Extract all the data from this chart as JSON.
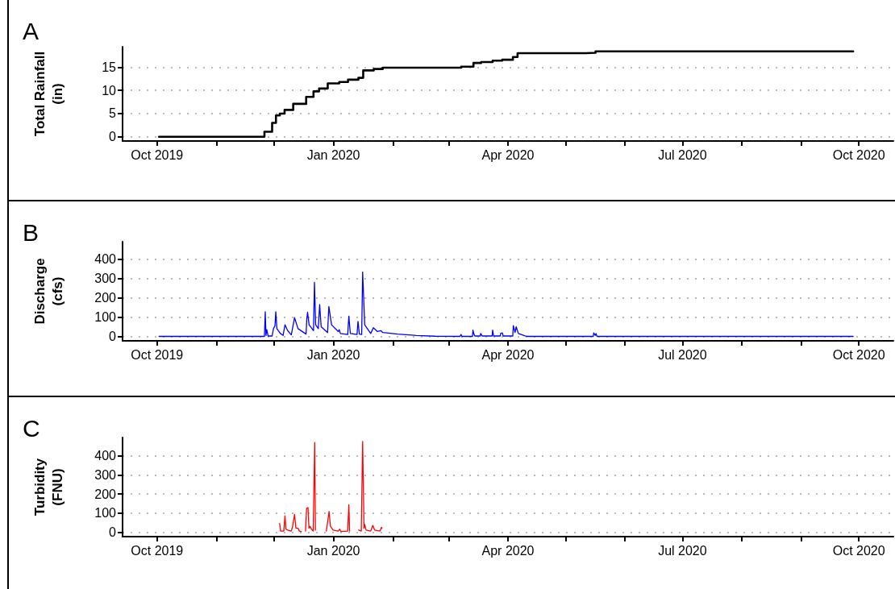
{
  "chart_data": [
    {
      "type": "step",
      "title": "A",
      "ylabel": "Total Rainfall (in)",
      "color": "#000000",
      "grid": "y",
      "x": [
        "2019-10-02",
        "2019-11-26",
        "2019-11-30",
        "2019-12-02",
        "2019-12-04",
        "2019-12-06T12:00",
        "2019-12-11",
        "2019-12-17T18:00",
        "2019-12-21T14:00",
        "2019-12-24T12:00",
        "2019-12-29",
        "2020-01-04",
        "2020-01-08T14:00",
        "2020-01-14",
        "2020-01-16T12:00",
        "2020-01-22",
        "2020-01-26T16:00",
        "2020-03-07T14:00",
        "2020-03-14",
        "2020-03-18",
        "2020-03-24",
        "2020-03-29",
        "2020-04-03T14:00",
        "2020-04-06",
        "2020-05-11T14:00",
        "2020-05-16T16:00",
        "2020-09-28"
      ],
      "values": [
        0,
        1.1,
        3,
        4.6,
        5.0,
        5.8,
        7.1,
        8.6,
        9.8,
        10.4,
        11.5,
        11.8,
        12.3,
        12.7,
        14.3,
        14.6,
        14.9,
        15.1,
        15.9,
        16.1,
        16.4,
        16.6,
        17.2,
        18.0,
        18.1,
        18.4,
        18.4
      ],
      "xlim": [
        "2019-09-13",
        "2020-10-19"
      ],
      "xticks": [
        {
          "value": "2019-10-01",
          "label": "Oct 2019"
        },
        {
          "value": "2019-11-01",
          "label": null
        },
        {
          "value": "2019-12-01",
          "label": null
        },
        {
          "value": "2020-01-01",
          "label": "Jan 2020"
        },
        {
          "value": "2020-02-01",
          "label": null
        },
        {
          "value": "2020-03-01",
          "label": null
        },
        {
          "value": "2020-04-01",
          "label": "Apr 2020"
        },
        {
          "value": "2020-05-01",
          "label": null
        },
        {
          "value": "2020-06-01",
          "label": null
        },
        {
          "value": "2020-07-01",
          "label": "Jul 2020"
        },
        {
          "value": "2020-08-01",
          "label": null
        },
        {
          "value": "2020-09-01",
          "label": null
        },
        {
          "value": "2020-10-01",
          "label": "Oct 2020"
        }
      ],
      "ylim": [
        -0.9,
        19.4
      ],
      "yticks": [
        0,
        5,
        10,
        15
      ]
    },
    {
      "type": "line",
      "title": "B",
      "ylabel": "Discharge (cfs)",
      "color": "#0000ff",
      "grid": "y",
      "x": [
        "2019-10-02",
        "2019-11-26",
        "2019-11-26T10:00",
        "2019-11-26T19:00",
        "2019-11-27T05:00",
        "2019-11-27T22:00",
        "2019-11-30",
        "2019-11-30T17:00",
        "2019-12-01T12:00",
        "2019-12-01T22:00",
        "2019-12-02T12:00",
        "2019-12-04T07:00",
        "2019-12-05T17:00",
        "2019-12-06T17:00",
        "2019-12-08T02:00",
        "2019-12-10",
        "2019-12-11T17:00",
        "2019-12-13T12:00",
        "2019-12-17T17:00",
        "2019-12-18T02:00",
        "2019-12-18T12:00",
        "2019-12-19T07:00",
        "2019-12-21T14:00",
        "2019-12-22T02:00",
        "2019-12-22T17:00",
        "2019-12-24T02:00",
        "2019-12-24T19:00",
        "2019-12-25T14:00",
        "2019-12-28T22:00",
        "2019-12-29T14:00",
        "2019-12-31",
        "2020-01-03T12:00",
        "2020-01-04",
        "2020-01-04T14:00",
        "2020-01-08T10:00",
        "2020-01-09",
        "2020-01-09T19:00",
        "2020-01-13T07:00",
        "2020-01-13T19:00",
        "2020-01-14T12:00",
        "2020-01-15T17:00",
        "2020-01-16T05:00",
        "2020-01-17T07:00",
        "2020-01-20T10:00",
        "2020-01-21T19:00",
        "2020-01-23T22:00",
        "2020-01-25T17:00",
        "2020-01-26T17:00",
        "2020-02-03T10:00",
        "2020-02-13T05:00",
        "2020-02-23",
        "2020-03-07",
        "2020-03-07T12:00",
        "2020-03-08",
        "2020-03-13T12:00",
        "2020-03-13T17:00",
        "2020-03-14T06:00",
        "2020-03-14T18:00",
        "2020-03-17T12:00",
        "2020-03-17T19:00",
        "2020-03-18T12:00",
        "2020-03-23T18:00",
        "2020-03-24",
        "2020-03-24T12:00",
        "2020-03-28",
        "2020-03-28T05:00",
        "2020-03-29T02:00",
        "2020-03-29T12:00",
        "2020-04-03T12:00",
        "2020-04-03T19:00",
        "2020-04-04T17:00",
        "2020-04-05T07:00",
        "2020-04-06T10:00",
        "2020-04-09T22:00",
        "2020-04-11",
        "2020-05-15T12:00",
        "2020-05-15T17:00",
        "2020-05-16T12:00",
        "2020-05-16T22:00",
        "2020-05-17T10:00",
        "2020-09-28"
      ],
      "values": [
        0,
        0,
        128,
        5,
        35,
        2,
        2,
        40,
        55,
        128,
        40,
        15,
        5,
        60,
        30,
        8,
        97,
        40,
        12,
        90,
        125,
        60,
        30,
        280,
        60,
        40,
        165,
        50,
        20,
        155,
        60,
        25,
        35,
        15,
        10,
        105,
        15,
        10,
        78,
        12,
        10,
        333,
        60,
        15,
        45,
        25,
        30,
        20,
        12,
        5,
        1,
        0,
        10,
        0,
        0,
        33,
        12,
        2,
        2,
        15,
        2,
        2,
        33,
        2,
        2,
        15,
        18,
        2,
        2,
        56,
        20,
        50,
        15,
        3,
        0,
        0,
        18,
        5,
        15,
        0,
        0
      ],
      "xlim": [
        "2019-09-13",
        "2020-10-19"
      ],
      "xticks": [
        {
          "value": "2019-10-01",
          "label": "Oct 2019"
        },
        {
          "value": "2019-11-01",
          "label": null
        },
        {
          "value": "2019-12-01",
          "label": null
        },
        {
          "value": "2020-01-01",
          "label": "Jan 2020"
        },
        {
          "value": "2020-02-01",
          "label": null
        },
        {
          "value": "2020-03-01",
          "label": null
        },
        {
          "value": "2020-04-01",
          "label": "Apr 2020"
        },
        {
          "value": "2020-05-01",
          "label": null
        },
        {
          "value": "2020-06-01",
          "label": null
        },
        {
          "value": "2020-07-01",
          "label": "Jul 2020"
        },
        {
          "value": "2020-08-01",
          "label": null
        },
        {
          "value": "2020-09-01",
          "label": null
        },
        {
          "value": "2020-10-01",
          "label": "Oct 2020"
        }
      ],
      "ylim": [
        -23,
        490
      ],
      "yticks": [
        0,
        100,
        200,
        300,
        400
      ]
    },
    {
      "type": "line",
      "title": "C",
      "ylabel": "Turbidity (FNU)",
      "color": "#ff0000",
      "grid": "y",
      "x": [
        "2019-12-03T22:00",
        "2019-12-04T10:00",
        "2019-12-06T02:00",
        "2019-12-06T17:00",
        "2019-12-07T05:00",
        "2019-12-08T02:00",
        "2019-12-10",
        "2019-12-10T17:00",
        "2019-12-11T17:00",
        "2019-12-12T10:00",
        "2019-12-13T12:00",
        "2019-12-14T05:00",
        "2019-12-15T05:00",
        "2019-12-16T06:00",
        "2019-12-17T10:00",
        "2019-12-18",
        "2019-12-18T17:00",
        "2019-12-19T05:00",
        "2019-12-19T19:00",
        "2019-12-20T12:00",
        "2019-12-21T10:00",
        "2019-12-22T05:00",
        "2019-12-22T14:00",
        "2019-12-25",
        "2019-12-28T07:00",
        "2019-12-29T17:00",
        "2019-12-30T10:00",
        "2019-12-31T19:00",
        "2020-01-03T12:00",
        "2020-01-04T05:00",
        "2020-01-04T22:00",
        "2020-01-08T10:00",
        "2020-01-09",
        "2020-01-09T10:00",
        "2020-01-11",
        "2020-01-14T02:00",
        "2020-01-15T12:00",
        "2020-01-16T05:00",
        "2020-01-16T22:00",
        "2020-01-17T07:00",
        "2020-01-18",
        "2020-01-20T10:00",
        "2020-01-21T12:00",
        "2020-01-22T12:00",
        "2020-01-25T07:00",
        "2020-01-26",
        "2020-01-26T07:00"
      ],
      "values": [
        45,
        5,
        5,
        85,
        15,
        10,
        5,
        30,
        93,
        20,
        20,
        5,
        3,
        null,
        5,
        125,
        128,
        20,
        30,
        15,
        5,
        470,
        10,
        null,
        5,
        108,
        30,
        10,
        5,
        15,
        3,
        5,
        143,
        5,
        null,
        10,
        5,
        475,
        20,
        40,
        10,
        5,
        35,
        10,
        5,
        25,
        20
      ],
      "xlim": [
        "2019-09-13",
        "2020-10-19"
      ],
      "xticks": [
        {
          "value": "2019-10-01",
          "label": "Oct 2019"
        },
        {
          "value": "2019-11-01",
          "label": null
        },
        {
          "value": "2019-12-01",
          "label": null
        },
        {
          "value": "2020-01-01",
          "label": "Jan 2020"
        },
        {
          "value": "2020-02-01",
          "label": null
        },
        {
          "value": "2020-03-01",
          "label": null
        },
        {
          "value": "2020-04-01",
          "label": "Apr 2020"
        },
        {
          "value": "2020-05-01",
          "label": null
        },
        {
          "value": "2020-06-01",
          "label": null
        },
        {
          "value": "2020-07-01",
          "label": "Jul 2020"
        },
        {
          "value": "2020-08-01",
          "label": null
        },
        {
          "value": "2020-09-01",
          "label": null
        },
        {
          "value": "2020-10-01",
          "label": "Oct 2020"
        }
      ],
      "ylim": [
        -24,
        496
      ],
      "yticks": [
        0,
        100,
        200,
        300,
        400
      ]
    }
  ]
}
